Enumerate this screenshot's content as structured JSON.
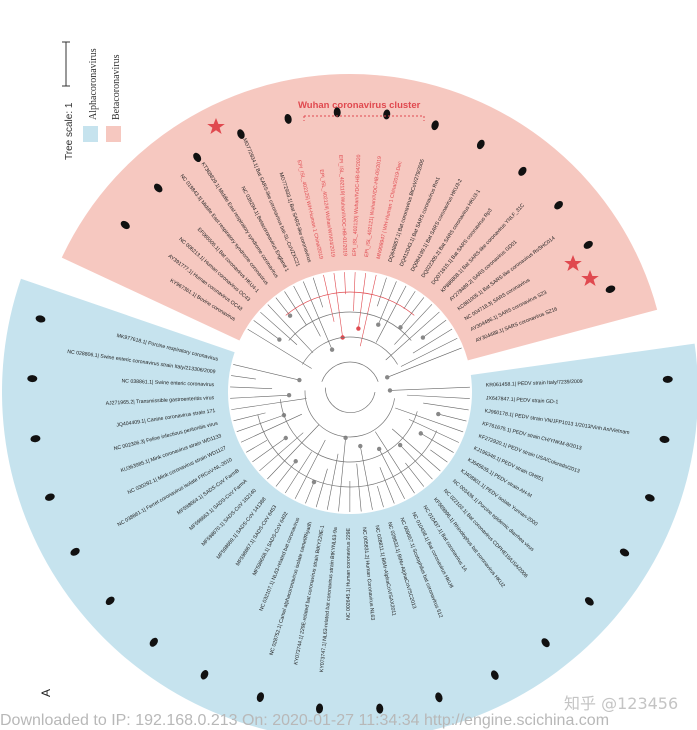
{
  "tree": {
    "scale_label": "Tree scale: 1",
    "legend": [
      {
        "label": "Alphacoronavirus",
        "color": "#c6e3ee"
      },
      {
        "label": "Betacoronavirus",
        "color": "#f6c8c0"
      }
    ],
    "cluster_label": "Wuhan coronavirus cluster",
    "panel_label": "A",
    "highlight_color": "#e0494f",
    "beta_leaves": [
      "AY304488.1| SARS coronavirus SZ16",
      "AY304486.1| SARS coronavirus SZ3",
      "NC 004718.3| SARS coronavirus",
      "KC881005.1| Bat SARS-like coronavirus RsSHC014",
      "AY278489.2| SARS coronavirus GD01",
      "KP886808.1| Bat SARS-like coronavirus YNLF_31C",
      "DQ071615.1| Bat SARS coronavirus Rp3",
      "DQ022305.2| Bat SARS coronavirus HKU3-1",
      "DQ084199.1| Bat SARS coronavirus HKU3-2",
      "DQ412043.1| Bat SARS coronavirus Rm1",
      "DQ648857.1| Bat coronavirus BtCoV/279/2005",
      "MN908947 | WH-Human 1 China/2019-Dec",
      "EPI_ISL_402121| Wuhan/IVDC-HB-05/2019",
      "EPI_ISL_402120| Wuhan/IVDC-HB-04/2020",
      "EPI_ISL_402119| Wuhan/IVDC-HB-01/2019",
      "EPI_ISL_402124| Wuhan/WIV04/2019",
      "EPI_ISL_402125| WH-Human 1 China/2019",
      "MG772933.1| Bat SARS-like coronavirus",
      "MG772934.1| Bat SARS-like coronavirus bat-SL-CoVZXC21",
      "NC 038294.1| Betacoronavirus England 1",
      "KT368829.1| Middle East respiratory syndrome coronavirus",
      "NC 019843.3| Middle East respiratory syndrome coronavirus",
      "EF065505.1| Bat coronavirus HKU4-1",
      "NC 006213.1| Human coronavirus OC43",
      "AY391777.1| Human coronavirus OC43",
      "KY967361.1| Bovine coronavirus"
    ],
    "alpha_leaves": [
      "KR061458.1| PEDV strain Italy/7239/2009",
      "JX647847.1| PEDV strain GD-1",
      "KJ960178.1| PEDV strain VN/JFP1013 1/2013/Vinh An/Vietnam",
      "KF761675.1| PEDV strain CH/YNKM-8/2013",
      "KF272920.1| PEDV strain USA/Colorado/2013",
      "KJ196348.1| PEDV strain OH851",
      "KJ645635.1| PEDV strain AH-M",
      "KJ408801.1| PEDV isolate Yunnan-2000",
      "NC 003436.1| Porcine epidemic diarrhea virus",
      "NC 022103.1| Bat coronavirus CDPHE15/USA/2006",
      "KF569996.1| Rhinolophus bat coronavirus HKU2",
      "NC 010437.1| Bat coronavirus 1A",
      "NC 010438.1| Bat coronavirus HKU8",
      "NC 009657.1| Scotophilus bat coronavirus 512",
      "NC 028833.1| BtNv-AlphaCoV/SC2013",
      "NC 028811.1| BtMr-AlphaCoV/SAX2011",
      "NC 005831.2| Human Coronavirus NL63",
      "NC 002645.1| Human coronavirus 229E",
      "KY073747.1| NL63-related bat coronavirus strain BtKYNL63-9a",
      "KY073744.1| 229E-related bat coronavirus strain BtKY229E-1",
      "NC 028752.1| Camel alphacoronavirus isolate camel/Riyadh",
      "NC 032107.1| NL63-related bat coronavirus",
      "MF598668.1| SADS-CoV 6402",
      "MF598667.1| SADS-CoV 6453",
      "MF598669.1| SADS-CoV 141388",
      "MF598670.1| SADS-CoV 162140",
      "MF598663.1| SADS-CoV FarmA",
      "MF598664.1| SADS-CoV FarmB",
      "NC 038861.1| Ferret coronavirus isolate FRCoV-NL-2010",
      "NC 030292.1| Mink coronavirus strain WD1127",
      "KU363985.1| Mink coronavirus strain WD1133",
      "NC 002306.3| Feline infectious peritonitis virus",
      "JQ404409.1| Canine coronavirus strain 171",
      "AJ271965.2| Transmissible gastroenteritis virus",
      "NC 038861.1| Swine enteric coronavirus",
      "NC 028806.1| Swine enteric coronavirus strain Italy/213306/2009",
      "MK977618.1| Porcine respiratory coronavirus"
    ],
    "animals": [
      {
        "name": "camel-icon"
      },
      {
        "name": "bat-icon"
      },
      {
        "name": "pig-icon"
      },
      {
        "name": "human-icon"
      },
      {
        "name": "civet-icon"
      },
      {
        "name": "cow-icon"
      },
      {
        "name": "dog-icon"
      },
      {
        "name": "cat-icon"
      },
      {
        "name": "ferret-icon"
      }
    ]
  },
  "watermark": "知乎 @123456",
  "footer": "Downloaded to IP: 192.168.0.213 On: 2020-01-27 11:34:34 http://engine.scichina.com"
}
